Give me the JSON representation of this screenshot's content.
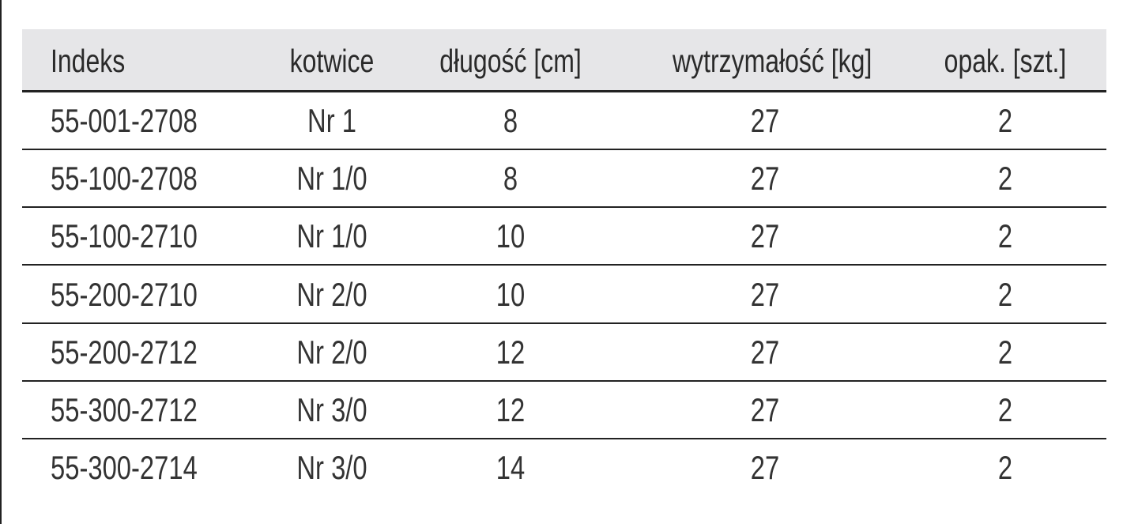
{
  "table": {
    "headers": [
      "Indeks",
      "kotwice",
      "długość [cm]",
      "wytrzymałość [kg]",
      "opak. [szt.]"
    ],
    "rows": [
      [
        "55-001-2708",
        "Nr 1",
        8,
        27,
        2
      ],
      [
        "55-100-2708",
        "Nr 1/0",
        8,
        27,
        2
      ],
      [
        "55-100-2710",
        "Nr 1/0",
        10,
        27,
        2
      ],
      [
        "55-200-2710",
        "Nr 2/0",
        10,
        27,
        2
      ],
      [
        "55-200-2712",
        "Nr 2/0",
        12,
        27,
        2
      ],
      [
        "55-300-2712",
        "Nr 3/0",
        12,
        27,
        2
      ],
      [
        "55-300-2714",
        "Nr 3/0",
        14,
        27,
        2
      ]
    ]
  }
}
